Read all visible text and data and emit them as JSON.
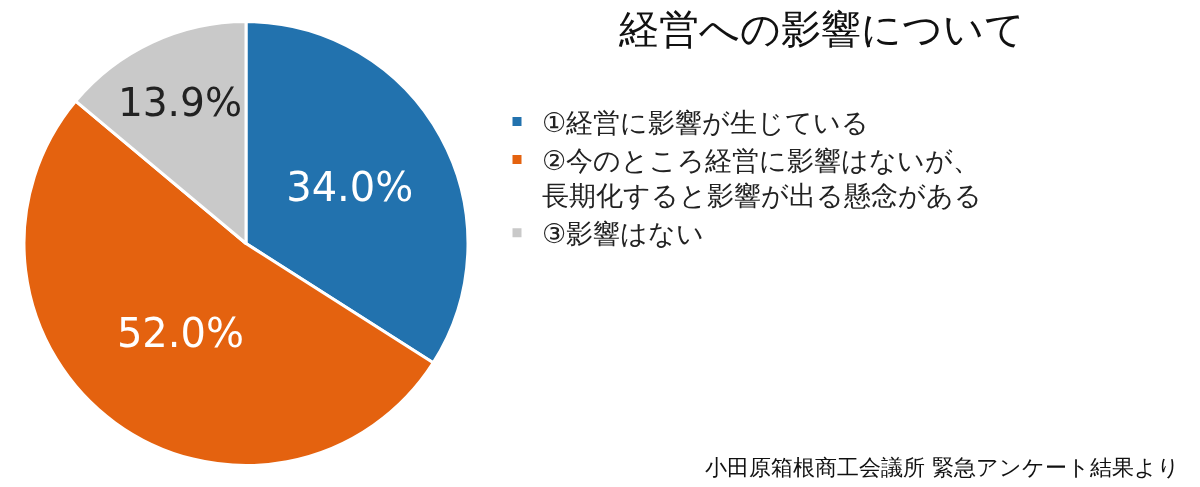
{
  "chart_data": {
    "type": "pie",
    "title": "経営への影響について",
    "categories": [
      "①経営に影響が生じている",
      "②今のところ経営に影響はないが、長期化すると影響が出る懸念がある",
      "③影響はない"
    ],
    "values": [
      34.0,
      52.0,
      13.9
    ],
    "value_labels": [
      "34.0%",
      "52.0%",
      "13.9%"
    ],
    "colors": [
      "#2272ae",
      "#e4620f",
      "#c9c9c9"
    ],
    "legend": "right",
    "annotations": [
      "小田原箱根商工会議所 緊急アンケート結果より"
    ]
  }
}
